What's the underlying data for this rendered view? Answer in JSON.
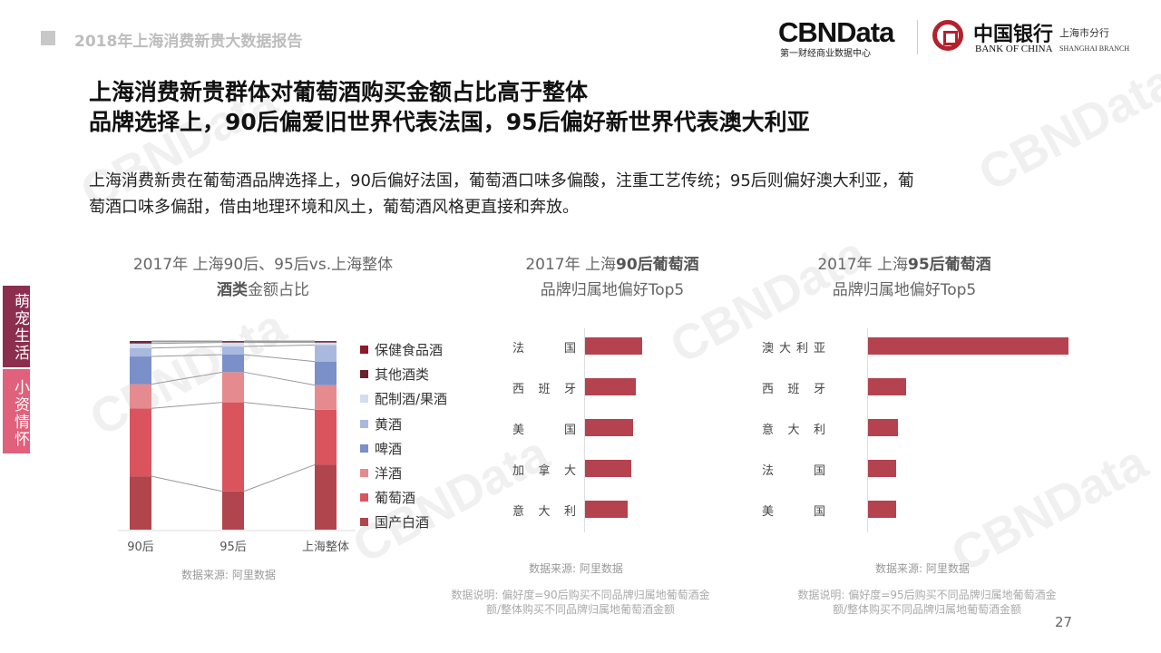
{
  "header": {
    "report_title": "2018年上海消费新贵大数据报告",
    "cbn_logo": "CBNData",
    "cbn_sub": "第一财经商业数据中心",
    "boc_cn": "中国银行",
    "boc_en": "BANK OF CHINA",
    "boc_branch": "上海市分行",
    "boc_branch_en": "SHANGHAI BRANCH"
  },
  "title": {
    "line1": "上海消费新贵群体对葡萄酒购买金额占比高于整体",
    "line2": "品牌选择上，90后偏爱旧世界代表法国，95后偏好新世界代表澳大利亚"
  },
  "description": {
    "line1": "上海消费新贵在葡萄酒品牌选择上，90后偏好法国，葡萄酒口味多偏酸，注重工艺传统；95后则偏好澳大利亚，葡",
    "line2": "萄酒口味多偏甜，借由地理环境和风土，葡萄酒风格更直接和奔放。"
  },
  "side_tabs": [
    "萌宠生活",
    "小资情怀"
  ],
  "watermark": "CBNData",
  "page_number": "27",
  "chart_data": [
    {
      "type": "bar",
      "stacked": true,
      "title_line1": "2017年 上海90后、95后vs.上海整体",
      "title_bold": "酒类",
      "title_rest": "金额占比",
      "categories": [
        "90后",
        "95后",
        "上海整体"
      ],
      "legend_position": "right",
      "series": [
        {
          "name": "国产白酒",
          "color": "#b0454d",
          "values": [
            28.3,
            20.3,
            34.4
          ]
        },
        {
          "name": "葡萄酒",
          "color": "#d9545d",
          "values": [
            36.0,
            47.2,
            29.1
          ]
        },
        {
          "name": "洋酒",
          "color": "#e58b8f",
          "values": [
            12.8,
            16.0,
            13.1
          ]
        },
        {
          "name": "啤酒",
          "color": "#7b8fc8",
          "values": [
            14.7,
            9.3,
            12.5
          ]
        },
        {
          "name": "黄酒",
          "color": "#a9b8dd",
          "values": [
            4.5,
            4.3,
            8.8
          ]
        },
        {
          "name": "配制酒/果酒",
          "color": "#d4dcef",
          "values": [
            2.4,
            2.1,
            1.3
          ]
        },
        {
          "name": "其他酒类",
          "color": "#6b2030",
          "values": [
            0.8,
            0.5,
            0.5
          ]
        },
        {
          "name": "保健食品酒",
          "color": "#8b1a2b",
          "values": [
            0.5,
            0.3,
            0.3
          ]
        }
      ],
      "source": "数据来源: 阿里数据"
    },
    {
      "type": "bar",
      "orientation": "horizontal",
      "title_pre": "2017年  上海",
      "title_bold": "90后葡萄酒",
      "subtitle": "品牌归属地偏好Top5",
      "categories": [
        "法　国",
        "西班牙",
        "美　国",
        "加拿大",
        "意大利"
      ],
      "values": [
        100,
        89,
        84,
        81,
        75
      ],
      "color": "#b5424f",
      "source": "数据来源: 阿里数据",
      "note_line1": "数据说明: 偏好度=90后购买不同品牌归属地葡萄酒金",
      "note_line2": "额/整体购买不同品牌归属地葡萄酒金额"
    },
    {
      "type": "bar",
      "orientation": "horizontal",
      "title_pre": "2017年  上海",
      "title_bold": "95后葡萄酒",
      "subtitle": "品牌归属地偏好Top5",
      "categories": [
        "澳大利亚",
        "西班牙",
        "意大利",
        "法　国",
        "美　国"
      ],
      "values": [
        100,
        19,
        15,
        14,
        14
      ],
      "color": "#b5424f",
      "source": "数据来源: 阿里数据",
      "note_line1": "数据说明: 偏好度=95后购买不同品牌归属地葡萄酒金",
      "note_line2": "额/整体购买不同品牌归属地葡萄酒金额"
    }
  ]
}
